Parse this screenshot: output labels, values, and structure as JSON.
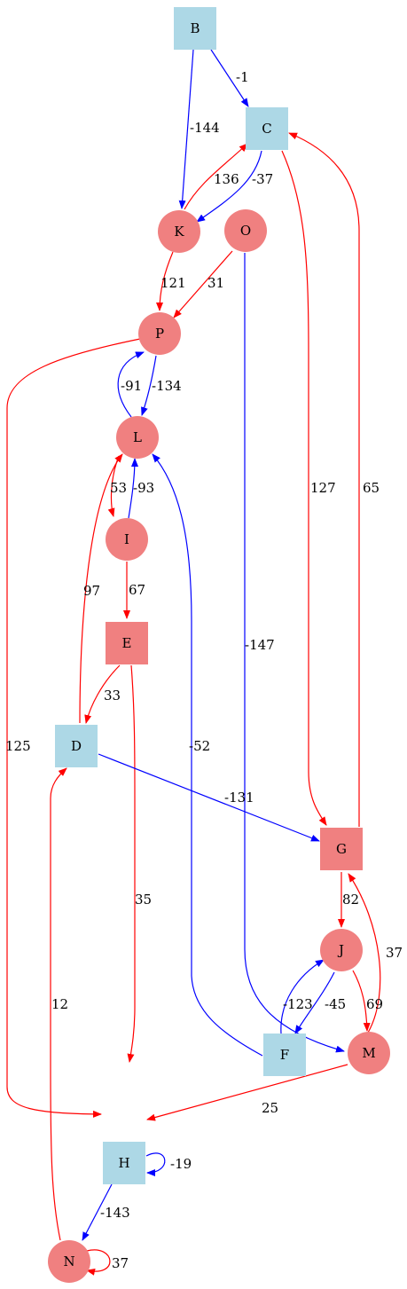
{
  "colors": {
    "square_node": "#add8e6",
    "circle_node": "#f08080",
    "square_red_node": "#f08080",
    "edge_red": "#ff0000",
    "edge_blue": "#0000ff"
  },
  "nodes": {
    "B": "B",
    "C": "C",
    "K": "K",
    "O": "O",
    "P": "P",
    "L": "L",
    "I": "I",
    "E": "E",
    "D": "D",
    "G": "G",
    "J": "J",
    "F": "F",
    "M": "M",
    "H": "H",
    "N": "N"
  },
  "edges": {
    "b_c": "-1",
    "b_k": "-144",
    "k_c": "136",
    "c_k": "-37",
    "c_g": "127",
    "g_c": "65",
    "k_p": "121",
    "o_p": "31",
    "o_m": "-147",
    "p_l_a": "-91",
    "p_l_b": "-134",
    "p_h": "125",
    "l_i": "53",
    "i_l": "-93",
    "i_e": "67",
    "d_l": "97",
    "e_d": "33",
    "e_h": "35",
    "d_g": "-131",
    "f_l": "-52",
    "g_j": "82",
    "m_g": "37",
    "j_f": "-45",
    "f_j": "-123",
    "j_m": "69",
    "m_h": "25",
    "h_h": "-19",
    "h_n": "-143",
    "n_n": "37",
    "n_d": "12"
  }
}
